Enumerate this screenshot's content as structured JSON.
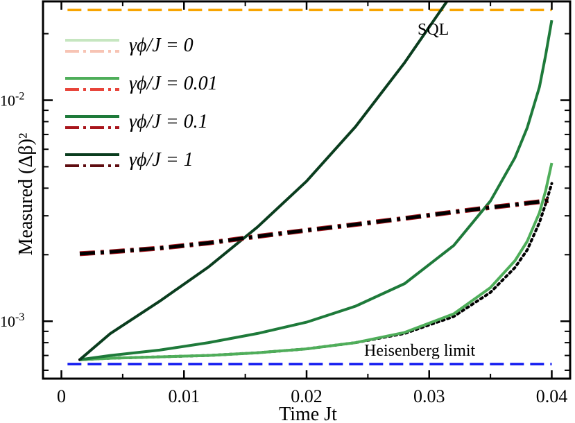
{
  "chart_data": {
    "type": "line",
    "xlabel": "Time Jt",
    "ylabel": "Measured (Δβ)²",
    "xlim": [
      -0.0015,
      0.0415
    ],
    "ylim": [
      0.00055,
      0.028
    ],
    "yscale": "log",
    "x_ticks": [
      0,
      0.01,
      0.02,
      0.03,
      0.04
    ],
    "x_tick_labels": [
      "0",
      "0.01",
      "0.02",
      "0.03",
      "0.04"
    ],
    "y_ticks": [
      0.001,
      0.01
    ],
    "y_tick_labels": [
      "10-3",
      "10-2"
    ],
    "grid": false,
    "legend_position": "upper-left",
    "legend": [
      {
        "label": "γϕ/J = 0",
        "solid_color": "#c6e6c0",
        "dash_color": "#f7c4b4"
      },
      {
        "label": "γϕ/J = 0.01",
        "solid_color": "#4fae5a",
        "dash_color": "#e8443a"
      },
      {
        "label": "γϕ/J = 0.1",
        "solid_color": "#1e7a3a",
        "dash_color": "#a8151c"
      },
      {
        "label": "γϕ/J = 1",
        "solid_color": "#0a3d1e",
        "dash_color": "#5e0c10"
      }
    ],
    "reference_lines": [
      {
        "label": "SQL",
        "y": 0.0256,
        "color": "#f7a400"
      },
      {
        "label": "Heisenberg limit",
        "y": 0.00064,
        "color": "#1018f0"
      }
    ],
    "x": [
      0.0015,
      0.004,
      0.008,
      0.012,
      0.016,
      0.02,
      0.024,
      0.028,
      0.032,
      0.035,
      0.037,
      0.038,
      0.039,
      0.0395,
      0.04
    ],
    "series": [
      {
        "name": "γϕ/J = 0 (dotted, black)",
        "style": "dotted",
        "color": "#000000",
        "values": [
          0.00067,
          0.00068,
          0.00069,
          0.0007,
          0.00072,
          0.00075,
          0.0008,
          0.00088,
          0.00105,
          0.00135,
          0.00175,
          0.0021,
          0.0028,
          0.0034,
          0.0042
        ]
      },
      {
        "name": "γϕ/J = 0.01",
        "style": "solid",
        "color": "#4fae5a",
        "values": [
          0.00067,
          0.00068,
          0.00069,
          0.0007,
          0.00072,
          0.00075,
          0.0008,
          0.00089,
          0.00108,
          0.00142,
          0.00188,
          0.0023,
          0.0031,
          0.0039,
          0.0052
        ]
      },
      {
        "name": "γϕ/J = 0.1",
        "style": "solid",
        "color": "#1e7a3a",
        "values": [
          0.00067,
          0.0007,
          0.00074,
          0.0008,
          0.00088,
          0.00099,
          0.00117,
          0.00148,
          0.0022,
          0.0035,
          0.0055,
          0.0075,
          0.0115,
          0.016,
          0.023
        ]
      },
      {
        "name": "γϕ/J = 1",
        "style": "solid",
        "color": "#0a3d1e",
        "values": [
          0.00067,
          0.00088,
          0.00123,
          0.00176,
          0.00267,
          0.0043,
          0.0076,
          0.0148,
          0.031,
          0.031,
          0.031,
          0.031,
          0.031,
          0.031,
          0.031
        ]
      },
      {
        "name": "γϕ/J = 0 (dash-dot)",
        "style": "dashdot",
        "color": "#000000",
        "values": [
          0.00202,
          0.00206,
          0.00214,
          0.00226,
          0.00242,
          0.00258,
          0.00274,
          0.00292,
          0.00312,
          0.00327,
          0.00337,
          0.00342,
          0.00347,
          0.0035,
          0.00352
        ]
      }
    ]
  }
}
